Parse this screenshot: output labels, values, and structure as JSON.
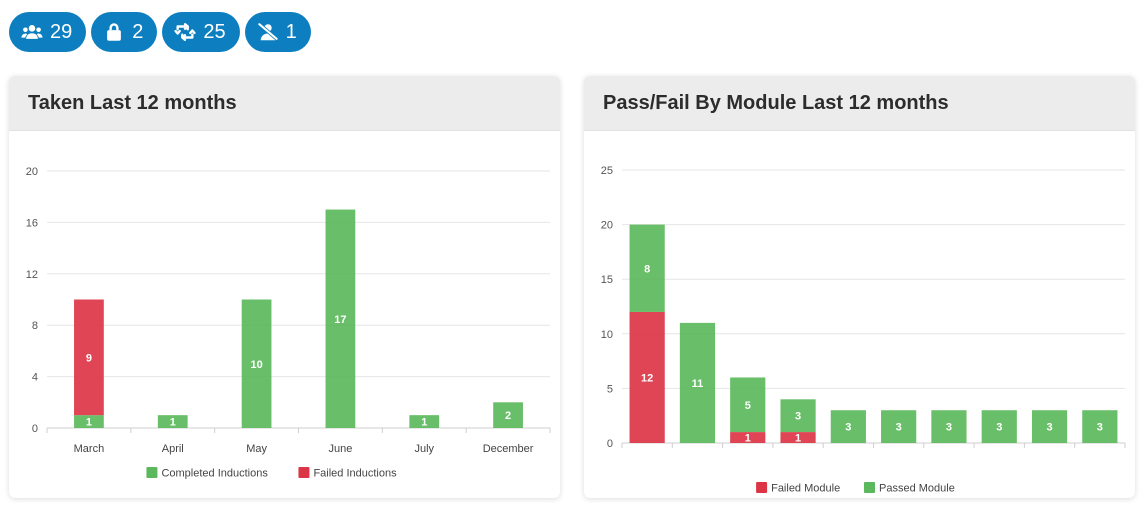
{
  "badges": [
    {
      "icon": "users-icon",
      "count": "29"
    },
    {
      "icon": "lock-icon",
      "count": "2"
    },
    {
      "icon": "retweet-icon",
      "count": "25"
    },
    {
      "icon": "user-slash-icon",
      "count": "1"
    }
  ],
  "cards": {
    "taken": {
      "title": "Taken Last 12 months"
    },
    "passfail": {
      "title": "Pass/Fail By Module Last 12 months"
    }
  },
  "colors": {
    "green": "#5cb85c",
    "red": "#dc3545",
    "badge": "#0d7fc0"
  },
  "chart_data": [
    {
      "type": "bar",
      "stacked": true,
      "categories": [
        "March",
        "April",
        "May",
        "June",
        "July",
        "December"
      ],
      "series": [
        {
          "name": "Completed Inductions",
          "color": "#5cb85c",
          "values": [
            1,
            1,
            10,
            17,
            1,
            2
          ]
        },
        {
          "name": "Failed Inductions",
          "color": "#dc3545",
          "values": [
            9,
            0,
            0,
            0,
            0,
            0
          ]
        }
      ],
      "yticks": [
        0,
        4,
        8,
        12,
        16,
        20
      ],
      "ylim": [
        0,
        20
      ],
      "legend": "bottom",
      "grid": true
    },
    {
      "type": "bar",
      "stacked": true,
      "categories": [
        "",
        "",
        "",
        "",
        "",
        "",
        "",
        "",
        "",
        ""
      ],
      "series": [
        {
          "name": "Failed Module",
          "color": "#dc3545",
          "values": [
            12,
            0,
            1,
            1,
            0,
            0,
            0,
            0,
            0,
            0
          ]
        },
        {
          "name": "Passed Module",
          "color": "#5cb85c",
          "values": [
            8,
            11,
            5,
            3,
            3,
            3,
            3,
            3,
            3,
            3
          ]
        }
      ],
      "yticks": [
        0,
        5,
        10,
        15,
        20,
        25
      ],
      "ylim": [
        0,
        25
      ],
      "legend": "bottom",
      "grid": true
    }
  ]
}
